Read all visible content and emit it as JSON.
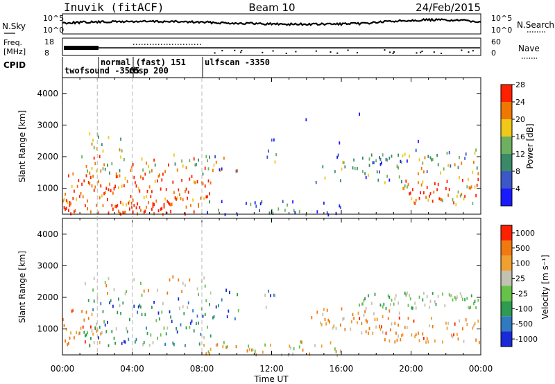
{
  "header": {
    "site": "Inuvik (fitACF)",
    "beam": "Beam 10",
    "date": "24/Feb/2015"
  },
  "strip_panels": {
    "nsky": {
      "left_label": "N.Sky",
      "right_label": "N.Search",
      "left_ticks": [
        "10^5",
        "10^0"
      ],
      "right_ticks": [
        "10^5",
        "10^0"
      ]
    },
    "freq": {
      "left_label_1": "Freq.",
      "left_label_2": "[MHz]",
      "right_label": "Nave",
      "left_ticks": [
        "18",
        "8"
      ],
      "right_ticks": [
        "60",
        "0"
      ]
    },
    "cpid": {
      "label": "CPID",
      "modes": [
        {
          "name": "twofsound -3505",
          "start_h": 0.0
        },
        {
          "name": "normal (fast) 151",
          "start_h": 2.0
        },
        {
          "name": "rbsp 200",
          "start_h": 4.0
        },
        {
          "name": "ulfscan -3350",
          "start_h": 8.0
        }
      ]
    }
  },
  "chart_data": [
    {
      "type": "heatmap",
      "name": "power",
      "ylabel": "Slant Range [km]",
      "y_ticks": [
        "1000",
        "2000",
        "3000",
        "4000"
      ],
      "y_range_km": [
        180,
        4500
      ],
      "x_range_h": [
        0,
        24
      ],
      "colorbar": {
        "label": "Power [dB]",
        "ticks": [
          "4",
          "8",
          "12",
          "16",
          "20",
          "24",
          "28"
        ],
        "colors": [
          "#1a1aff",
          "#3c58c8",
          "#3a8a68",
          "#6cb060",
          "#f0c818",
          "#f07800",
          "#ff2000"
        ]
      }
    },
    {
      "type": "heatmap",
      "name": "velocity",
      "ylabel": "Slant Range [km]",
      "y_ticks": [
        "1000",
        "2000",
        "3000",
        "4000"
      ],
      "y_range_km": [
        180,
        4500
      ],
      "x_range_h": [
        0,
        24
      ],
      "colorbar": {
        "label": "Velocity [m s⁻¹]",
        "ticks": [
          "1000",
          "500",
          "100",
          "25",
          "-25",
          "-100",
          "-500",
          "-1000"
        ],
        "colors": [
          "#1a2ad8",
          "#2f7ac0",
          "#2e9a52",
          "#66c248",
          "#c2c2b0",
          "#f0a030",
          "#f07a10",
          "#ff2000"
        ]
      }
    }
  ],
  "xaxis": {
    "ticks": [
      "00:00",
      "04:00",
      "08:00",
      "12:00",
      "16:00",
      "20:00",
      "00:00"
    ],
    "label": "Time UT"
  }
}
